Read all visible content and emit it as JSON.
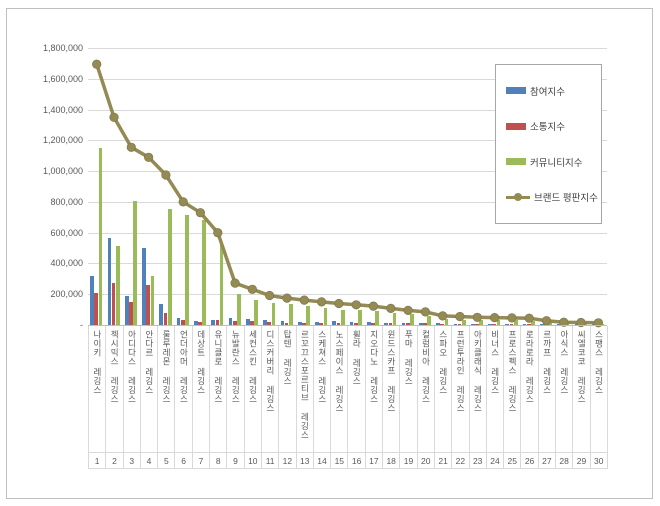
{
  "chart_data": {
    "type": "bar",
    "title": "",
    "xlabel": "",
    "ylabel": "",
    "ylim": [
      0,
      1800000
    ],
    "ytick_interval": 200000,
    "ytick_labels": [
      "1,800,000",
      "1,600,000",
      "1,400,000",
      "1,200,000",
      "1,000,000",
      "800,000",
      "600,000",
      "400,000",
      "200,000",
      "-"
    ],
    "grid": "horizontal",
    "legend_position": "inside-top-right",
    "categories": [
      "나이키 레깅스",
      "젝시믹스 레깅스",
      "아디다스 레깅스",
      "안다르 레깅스",
      "룰루레몬 레깅스",
      "언더아머 레깅스",
      "데상트 레깅스",
      "유니클로 레깅스",
      "뉴발란스 레깅스",
      "세컨스킨 레깅스",
      "디스커버리 레깅스",
      "탑텐 레깅스",
      "르꼬끄스포르티브 레깅스",
      "스케쳐스 레깅스",
      "노스페이스 레깅스",
      "휠라 레깅스",
      "지오다노 레깅스",
      "윈드스카프 레깅스",
      "푸마 레깅스",
      "컬럼비아 레깅스",
      "스파오 레깅스",
      "프런투라인 레깅스",
      "아키클래식 레깅스",
      "비너스 레깅스",
      "프로스펙스 레깅스",
      "로라로라 레깅스",
      "르까프 레깅스",
      "아식스 레깅스",
      "씨엘코코 레깅스",
      "스팽스 레깅스"
    ],
    "ranks": [
      1,
      2,
      3,
      4,
      5,
      6,
      7,
      8,
      9,
      10,
      11,
      12,
      13,
      14,
      15,
      16,
      17,
      18,
      19,
      20,
      21,
      22,
      23,
      24,
      25,
      26,
      27,
      28,
      29,
      30
    ],
    "series": [
      {
        "name": "참여지수",
        "type": "bar",
        "color": "#4F81BD",
        "values": [
          320000,
          565000,
          190000,
          500000,
          140000,
          48000,
          26000,
          36000,
          45000,
          42000,
          30000,
          25000,
          21000,
          22000,
          25000,
          22000,
          20000,
          15000,
          15000,
          14000,
          12000,
          10000,
          9000,
          9000,
          9000,
          8000,
          7000,
          6000,
          5000,
          5000
        ]
      },
      {
        "name": "소통지수",
        "type": "bar",
        "color": "#C0504D",
        "values": [
          210000,
          270000,
          150000,
          258000,
          77000,
          36000,
          22000,
          33000,
          27000,
          26000,
          20000,
          16000,
          15000,
          14000,
          15000,
          14000,
          13000,
          12000,
          11000,
          11000,
          10000,
          9000,
          8000,
          8000,
          7000,
          7000,
          6000,
          5000,
          4000,
          4000
        ]
      },
      {
        "name": "커뮤니티지수",
        "type": "bar",
        "color": "#9BBB59",
        "values": [
          1150000,
          515000,
          805000,
          320000,
          755000,
          716000,
          682000,
          531000,
          200000,
          164000,
          142000,
          134000,
          126000,
          114000,
          100000,
          95000,
          90000,
          81000,
          69000,
          60000,
          37000,
          36000,
          33000,
          31000,
          30000,
          29000,
          15000,
          7000,
          7000,
          5000
        ]
      },
      {
        "name": "브랜드 평판지수",
        "type": "line",
        "color": "#948A54",
        "values": [
          1695000,
          1350000,
          1155000,
          1090000,
          975000,
          800000,
          730000,
          600000,
          272000,
          232000,
          192000,
          175000,
          162000,
          150000,
          140000,
          131000,
          123000,
          108000,
          95000,
          85000,
          59000,
          55000,
          50000,
          48000,
          46000,
          44000,
          28000,
          18000,
          16000,
          14000
        ]
      }
    ]
  },
  "colors": {
    "gridline": "#D9D9D9",
    "axis": "#BFBFBF",
    "text": "#595959",
    "frame_border": "#BFBFBF",
    "legend_border": "#A6A6A6",
    "line_marker_stroke": "#7A7147"
  }
}
